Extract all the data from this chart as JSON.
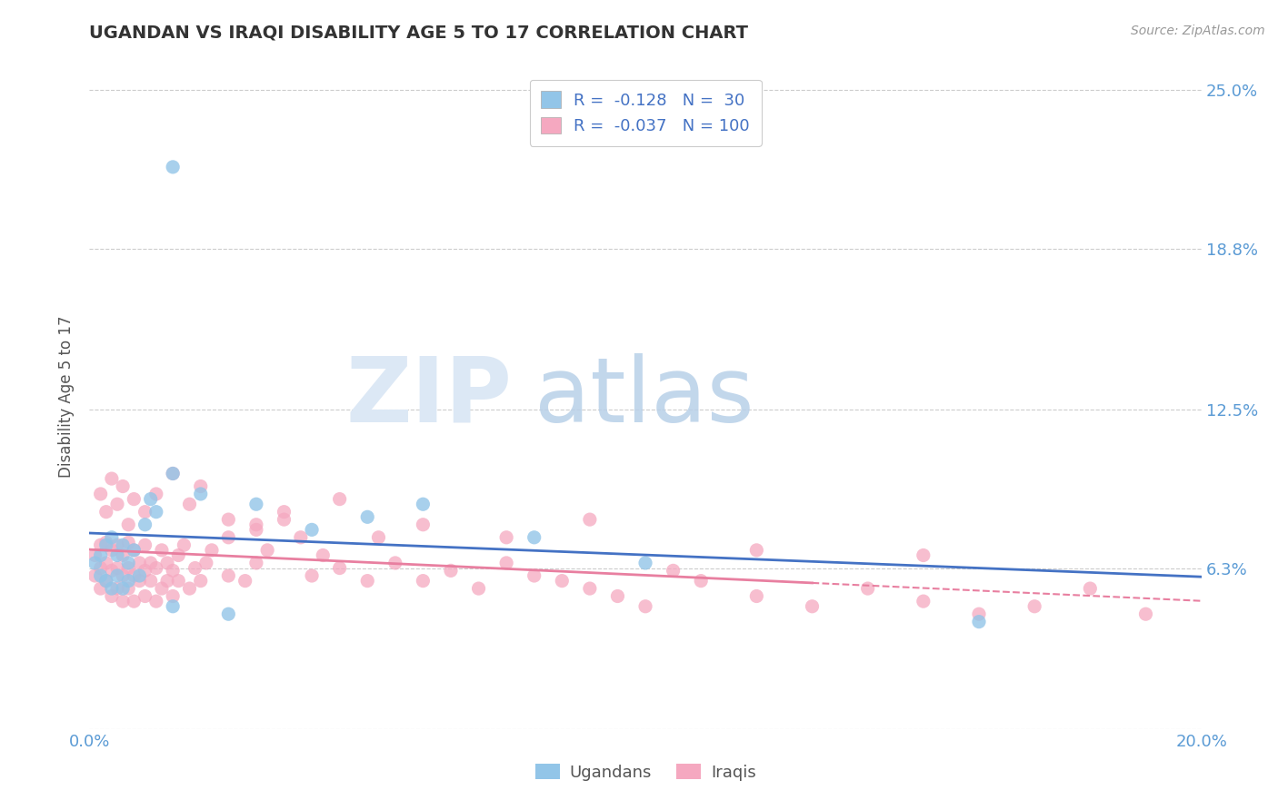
{
  "title": "UGANDAN VS IRAQI DISABILITY AGE 5 TO 17 CORRELATION CHART",
  "source": "Source: ZipAtlas.com",
  "ylabel": "Disability Age 5 to 17",
  "xlim": [
    0.0,
    0.2
  ],
  "ylim": [
    0.0,
    0.26
  ],
  "yticks": [
    0.0,
    0.063,
    0.125,
    0.188,
    0.25
  ],
  "ytick_labels": [
    "",
    "6.3%",
    "12.5%",
    "18.8%",
    "25.0%"
  ],
  "xticks": [
    0.0,
    0.05,
    0.1,
    0.15,
    0.2
  ],
  "xtick_labels": [
    "0.0%",
    "",
    "",
    "",
    "20.0%"
  ],
  "ugandan_color": "#92C5E8",
  "iraqi_color": "#F5A8C0",
  "ugandan_line_color": "#4472C4",
  "iraqi_line_color": "#E87FA0",
  "ugandan_R": "-0.128",
  "ugandan_N": "30",
  "iraqi_R": "-0.037",
  "iraqi_N": "100",
  "legend_label_ugandan": "Ugandans",
  "legend_label_iraqi": "Iraqis",
  "ugandan_x": [
    0.001,
    0.002,
    0.002,
    0.003,
    0.003,
    0.004,
    0.004,
    0.005,
    0.005,
    0.006,
    0.006,
    0.007,
    0.007,
    0.008,
    0.009,
    0.01,
    0.011,
    0.012,
    0.015,
    0.02,
    0.03,
    0.04,
    0.05,
    0.06,
    0.08,
    0.1,
    0.015,
    0.025,
    0.16,
    0.015
  ],
  "ugandan_y": [
    0.065,
    0.06,
    0.068,
    0.058,
    0.072,
    0.055,
    0.075,
    0.06,
    0.068,
    0.055,
    0.072,
    0.058,
    0.065,
    0.07,
    0.06,
    0.08,
    0.09,
    0.085,
    0.1,
    0.092,
    0.088,
    0.078,
    0.083,
    0.088,
    0.075,
    0.065,
    0.048,
    0.045,
    0.042,
    0.22
  ],
  "iraqi_x": [
    0.001,
    0.001,
    0.002,
    0.002,
    0.002,
    0.003,
    0.003,
    0.003,
    0.004,
    0.004,
    0.004,
    0.005,
    0.005,
    0.005,
    0.006,
    0.006,
    0.006,
    0.007,
    0.007,
    0.007,
    0.008,
    0.008,
    0.008,
    0.009,
    0.009,
    0.01,
    0.01,
    0.01,
    0.011,
    0.011,
    0.012,
    0.012,
    0.013,
    0.013,
    0.014,
    0.014,
    0.015,
    0.015,
    0.016,
    0.016,
    0.017,
    0.018,
    0.019,
    0.02,
    0.021,
    0.022,
    0.025,
    0.025,
    0.028,
    0.03,
    0.03,
    0.032,
    0.035,
    0.038,
    0.04,
    0.042,
    0.045,
    0.05,
    0.052,
    0.055,
    0.06,
    0.065,
    0.07,
    0.075,
    0.08,
    0.085,
    0.09,
    0.095,
    0.1,
    0.105,
    0.11,
    0.12,
    0.13,
    0.14,
    0.15,
    0.16,
    0.17,
    0.18,
    0.19,
    0.002,
    0.003,
    0.004,
    0.005,
    0.006,
    0.007,
    0.008,
    0.01,
    0.012,
    0.015,
    0.018,
    0.02,
    0.025,
    0.03,
    0.035,
    0.045,
    0.06,
    0.075,
    0.09,
    0.12,
    0.15
  ],
  "iraqi_y": [
    0.06,
    0.068,
    0.055,
    0.063,
    0.072,
    0.058,
    0.065,
    0.073,
    0.052,
    0.062,
    0.07,
    0.055,
    0.063,
    0.072,
    0.05,
    0.06,
    0.068,
    0.055,
    0.063,
    0.073,
    0.05,
    0.06,
    0.07,
    0.058,
    0.065,
    0.052,
    0.062,
    0.072,
    0.058,
    0.065,
    0.05,
    0.063,
    0.055,
    0.07,
    0.058,
    0.065,
    0.052,
    0.062,
    0.058,
    0.068,
    0.072,
    0.055,
    0.063,
    0.058,
    0.065,
    0.07,
    0.06,
    0.075,
    0.058,
    0.065,
    0.08,
    0.07,
    0.082,
    0.075,
    0.06,
    0.068,
    0.063,
    0.058,
    0.075,
    0.065,
    0.058,
    0.062,
    0.055,
    0.065,
    0.06,
    0.058,
    0.055,
    0.052,
    0.048,
    0.062,
    0.058,
    0.052,
    0.048,
    0.055,
    0.05,
    0.045,
    0.048,
    0.055,
    0.045,
    0.092,
    0.085,
    0.098,
    0.088,
    0.095,
    0.08,
    0.09,
    0.085,
    0.092,
    0.1,
    0.088,
    0.095,
    0.082,
    0.078,
    0.085,
    0.09,
    0.08,
    0.075,
    0.082,
    0.07,
    0.068
  ]
}
